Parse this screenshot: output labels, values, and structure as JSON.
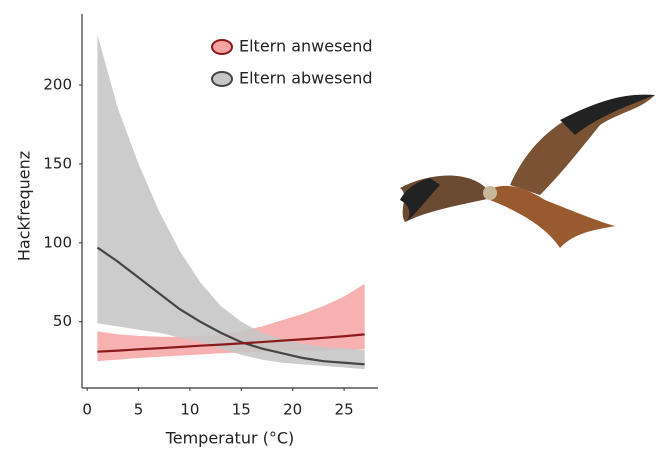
{
  "chart_data": {
    "type": "line",
    "xlabel": "Temperatur (°C)",
    "ylabel": "Hackfrequenz",
    "x": [
      1,
      3,
      5,
      7,
      9,
      11,
      13,
      15,
      17,
      19,
      21,
      23,
      25,
      27
    ],
    "xlim": [
      -0.5,
      28.3
    ],
    "xticks": [
      0,
      5,
      10,
      15,
      20,
      25
    ],
    "ylim": [
      8,
      245
    ],
    "yticks": [
      50,
      100,
      150,
      200
    ],
    "grid": false,
    "legend": "upper right",
    "series": [
      {
        "name": "Eltern anwesend",
        "color": "#8b1a1a",
        "band_color": "#f7a3a3",
        "values": [
          31,
          31.7,
          32.5,
          33.2,
          34,
          34.8,
          35.5,
          36.3,
          37.1,
          38,
          38.9,
          39.8,
          40.8,
          42
        ],
        "lower": [
          25,
          26,
          27,
          27.8,
          28.5,
          29.2,
          30,
          30.5,
          31,
          31.5,
          32,
          32,
          32.2,
          32.5
        ],
        "upper": [
          44,
          42,
          41,
          40.5,
          40.5,
          41,
          42,
          44,
          47,
          51,
          55,
          60,
          66,
          74
        ]
      },
      {
        "name": "Eltern abwesend",
        "color": "#454545",
        "band_color": "#c6c6c6",
        "values": [
          97,
          88,
          78,
          68,
          58,
          50,
          43,
          37,
          33,
          30,
          27,
          25,
          24,
          23
        ],
        "lower": [
          49,
          47,
          45,
          43,
          40,
          37,
          33,
          29,
          26,
          24,
          23,
          22,
          21,
          20
        ],
        "upper": [
          232,
          185,
          150,
          120,
          95,
          75,
          60,
          50,
          43,
          39,
          36,
          34,
          33,
          32
        ]
      }
    ]
  }
}
